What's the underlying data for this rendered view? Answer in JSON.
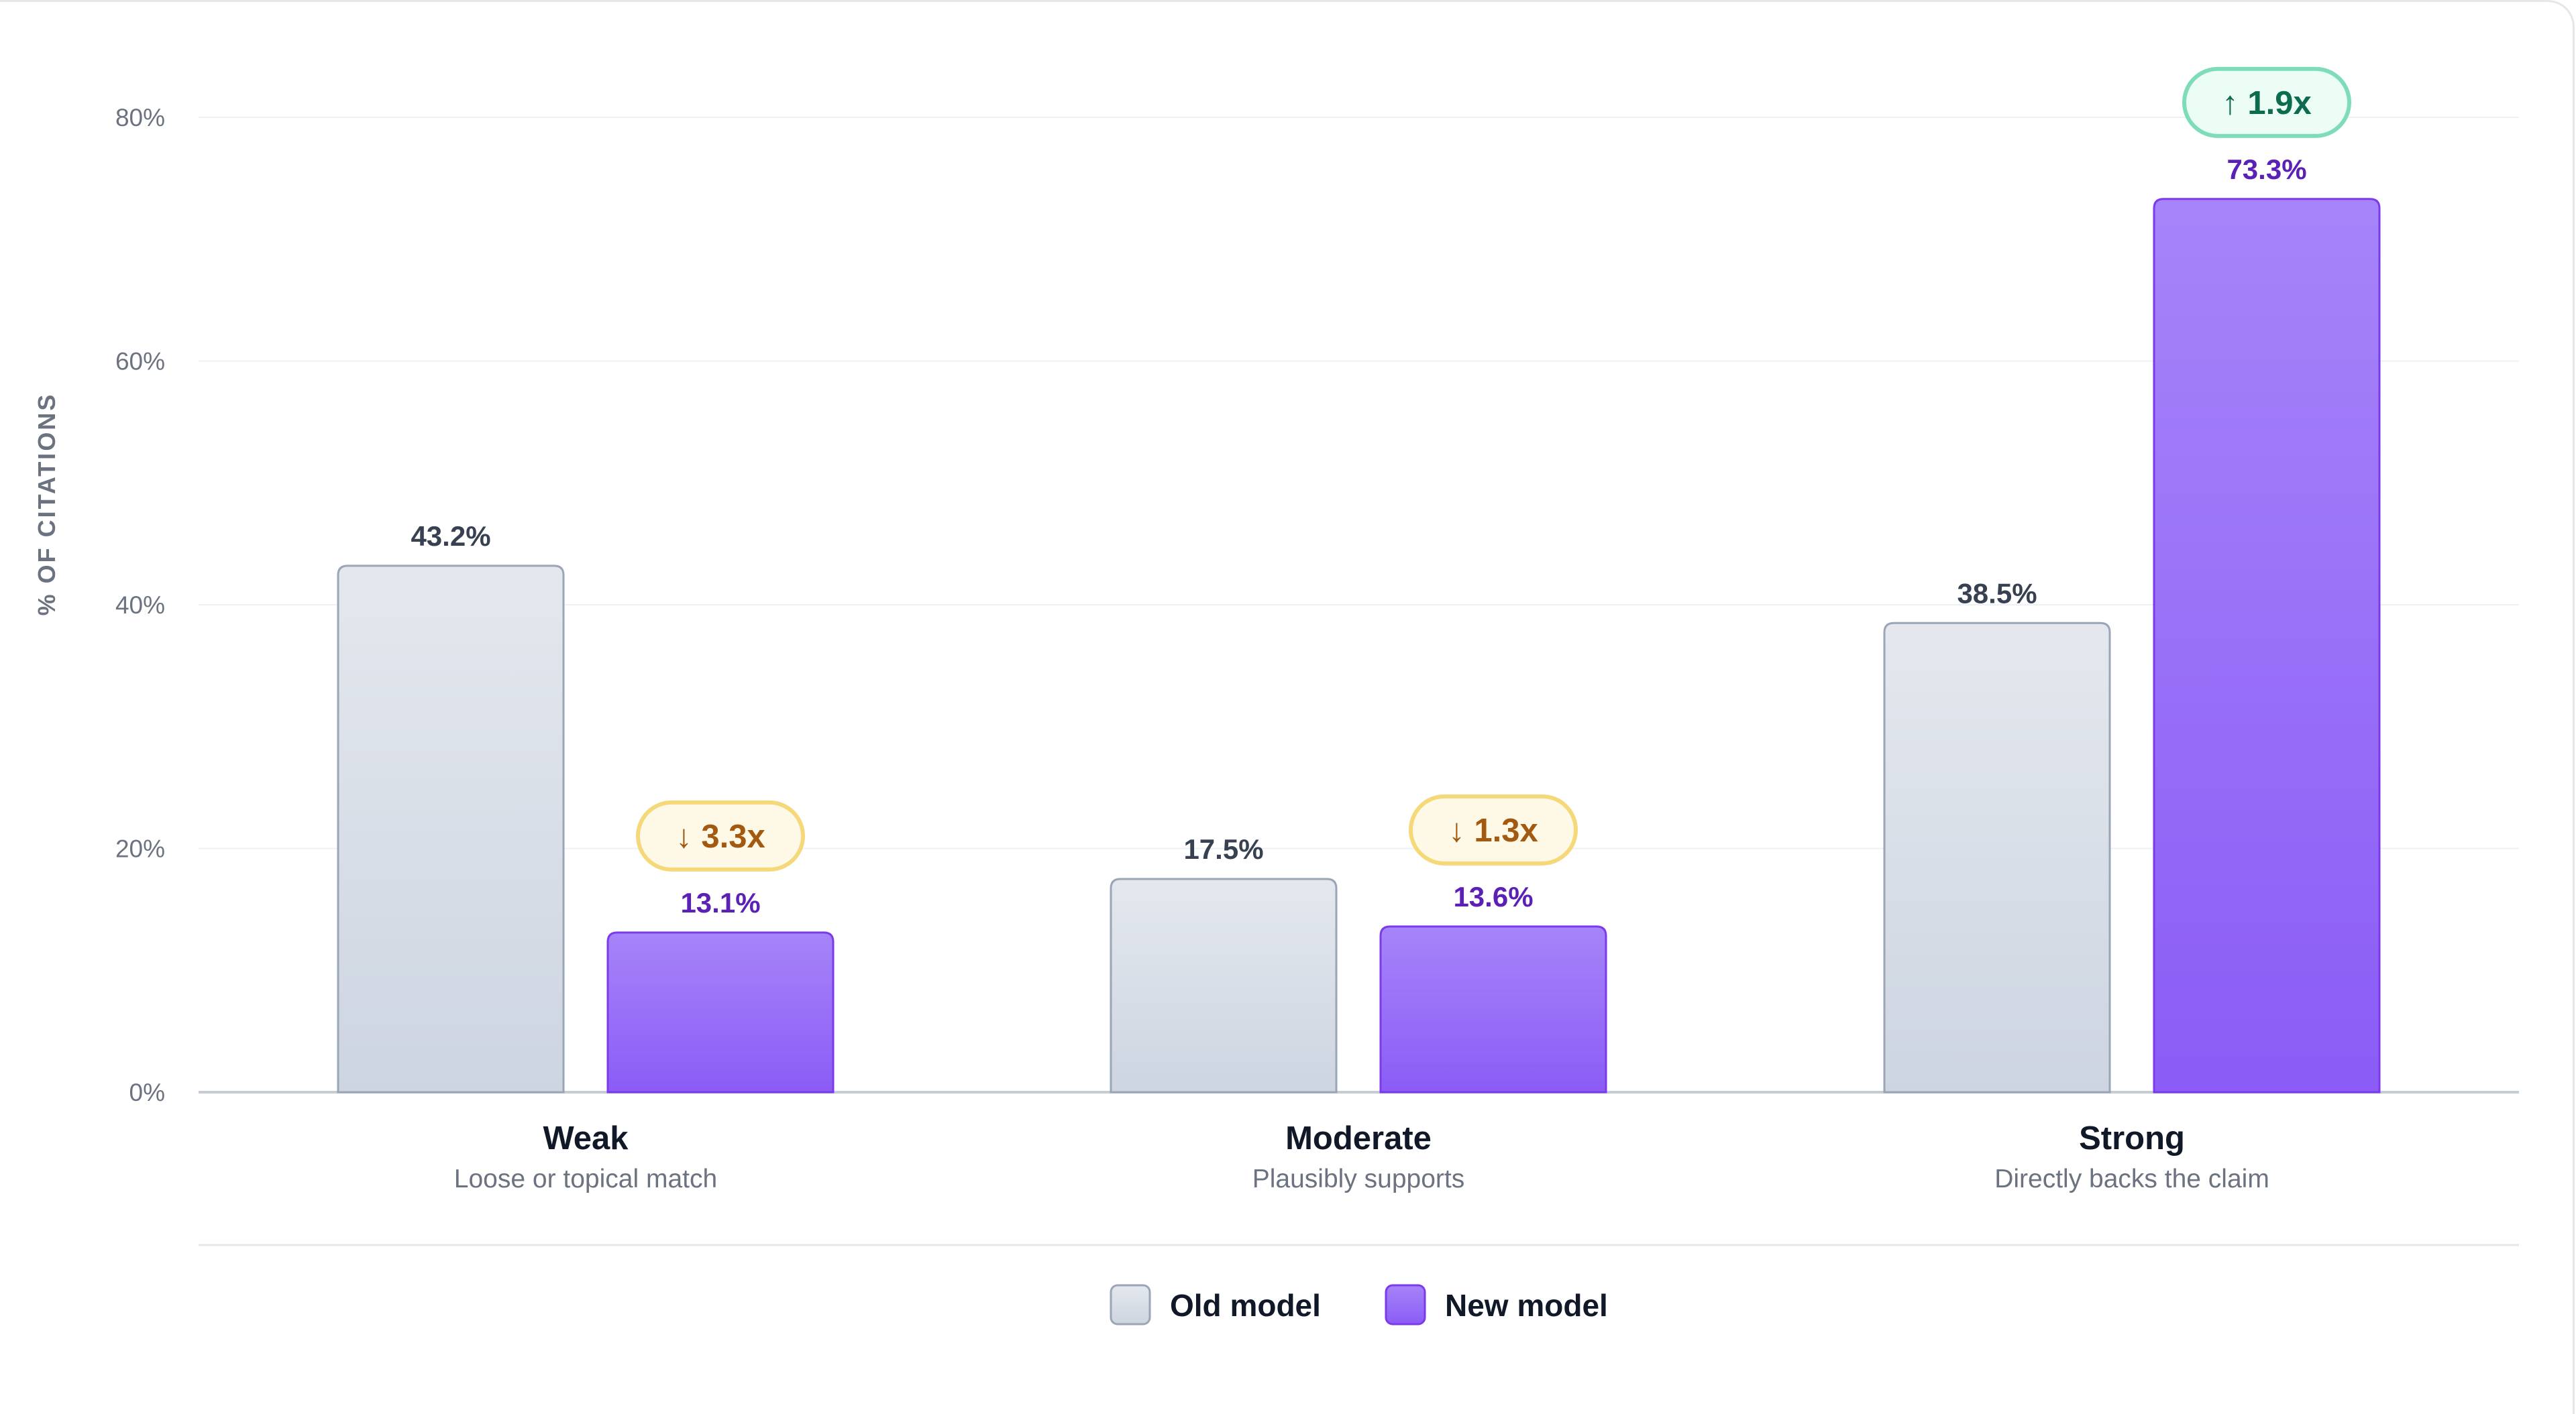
{
  "chart_data": {
    "type": "bar",
    "ylabel": "% OF CITATIONS",
    "ylim": [
      0,
      80
    ],
    "yticks": [
      0,
      20,
      40,
      60,
      80
    ],
    "ytick_labels": [
      "0%",
      "20%",
      "40%",
      "60%",
      "80%"
    ],
    "grid": true,
    "legend_position": "bottom-center",
    "categories": [
      {
        "label": "Weak",
        "sublabel": "Loose or topical match",
        "badge": {
          "text": "↓ 3.3x",
          "direction": "down"
        }
      },
      {
        "label": "Moderate",
        "sublabel": "Plausibly supports",
        "badge": {
          "text": "↓ 1.3x",
          "direction": "down"
        }
      },
      {
        "label": "Strong",
        "sublabel": "Directly backs the claim",
        "badge": {
          "text": "↑ 1.9x",
          "direction": "up"
        }
      }
    ],
    "series": [
      {
        "name": "Old model",
        "color": "#d9dfe8",
        "values": [
          43.2,
          17.5,
          38.5
        ],
        "labels": [
          "43.2%",
          "17.5%",
          "38.5%"
        ]
      },
      {
        "name": "New model",
        "color": "#8b5cf6",
        "values": [
          13.1,
          13.6,
          73.3
        ],
        "labels": [
          "13.1%",
          "13.6%",
          "73.3%"
        ]
      }
    ],
    "colors": {
      "badge_down_bg": "#fef9e7",
      "badge_down_border": "#f5d87a",
      "badge_down_text": "#a35a10",
      "badge_up_bg": "#ecfdf5",
      "badge_up_border": "#7fdcb9",
      "badge_up_text": "#0d6b4f"
    }
  }
}
